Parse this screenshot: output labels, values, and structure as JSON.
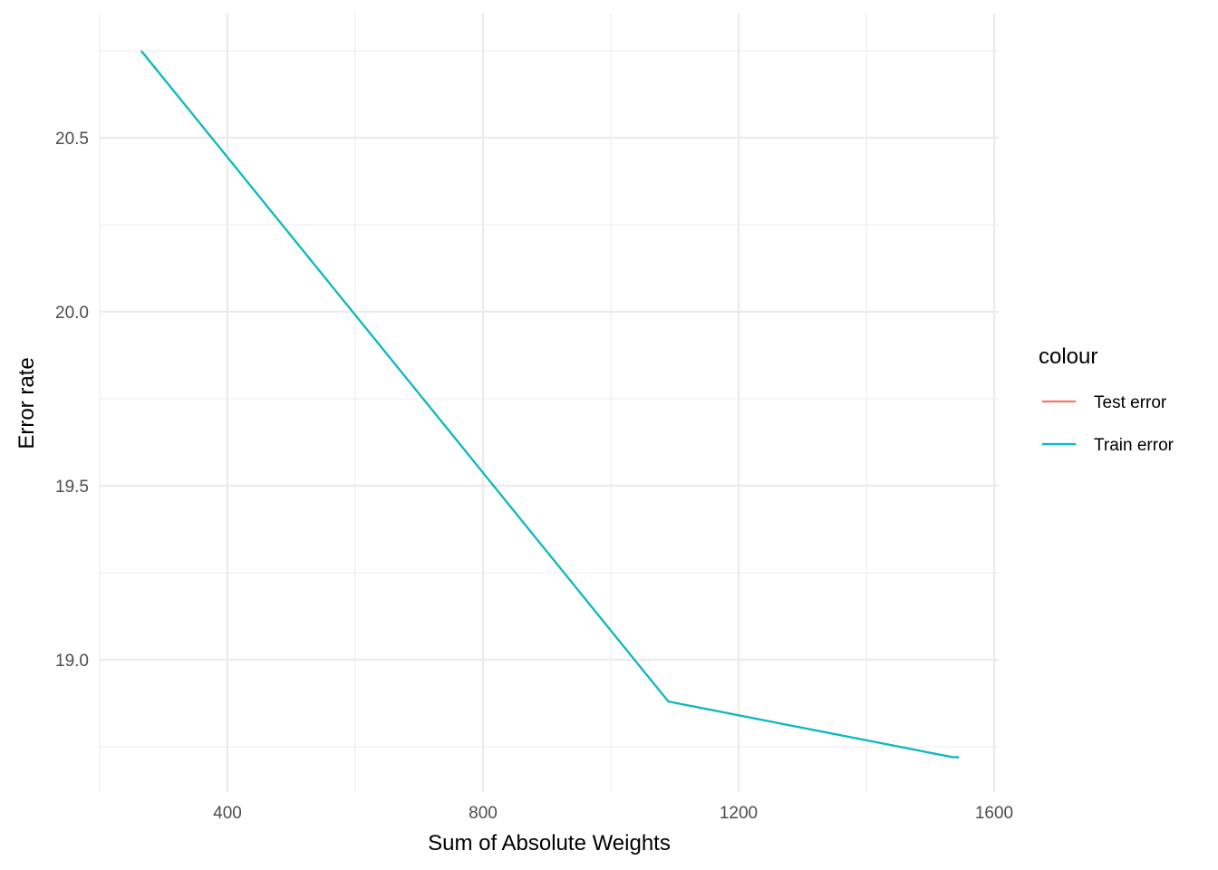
{
  "chart_data": {
    "type": "line",
    "xlabel": "Sum of Absolute Weights",
    "ylabel": "Error rate",
    "xlim": [
      200,
      1600
    ],
    "ylim": [
      18.6,
      20.85
    ],
    "x_ticks": [
      400,
      800,
      1200,
      1600
    ],
    "x_tick_labels": [
      "400",
      "800",
      "1200",
      "1600"
    ],
    "x_minor_ticks": [
      200,
      600,
      1000,
      1400
    ],
    "y_ticks": [
      19.0,
      19.5,
      20.0,
      20.5
    ],
    "y_tick_labels": [
      "19.0",
      "19.5",
      "20.0",
      "20.5"
    ],
    "y_minor_ticks": [
      18.75,
      19.25,
      19.75,
      20.25,
      20.75
    ],
    "grid": true,
    "legend": {
      "title": "colour",
      "placement": "right",
      "entries": [
        {
          "label": "Test error",
          "color": "#F8766D"
        },
        {
          "label": "Train error",
          "color": "#00BFC4"
        }
      ]
    },
    "series": [
      {
        "name": "Test error",
        "color": "#F8766D",
        "x": [
          265,
          1090,
          1535,
          1545
        ],
        "y": [
          20.75,
          18.88,
          18.72,
          18.72
        ]
      },
      {
        "name": "Train error",
        "color": "#00BFC4",
        "x": [
          265,
          1090,
          1535,
          1545
        ],
        "y": [
          20.75,
          18.88,
          18.72,
          18.72
        ]
      }
    ]
  }
}
